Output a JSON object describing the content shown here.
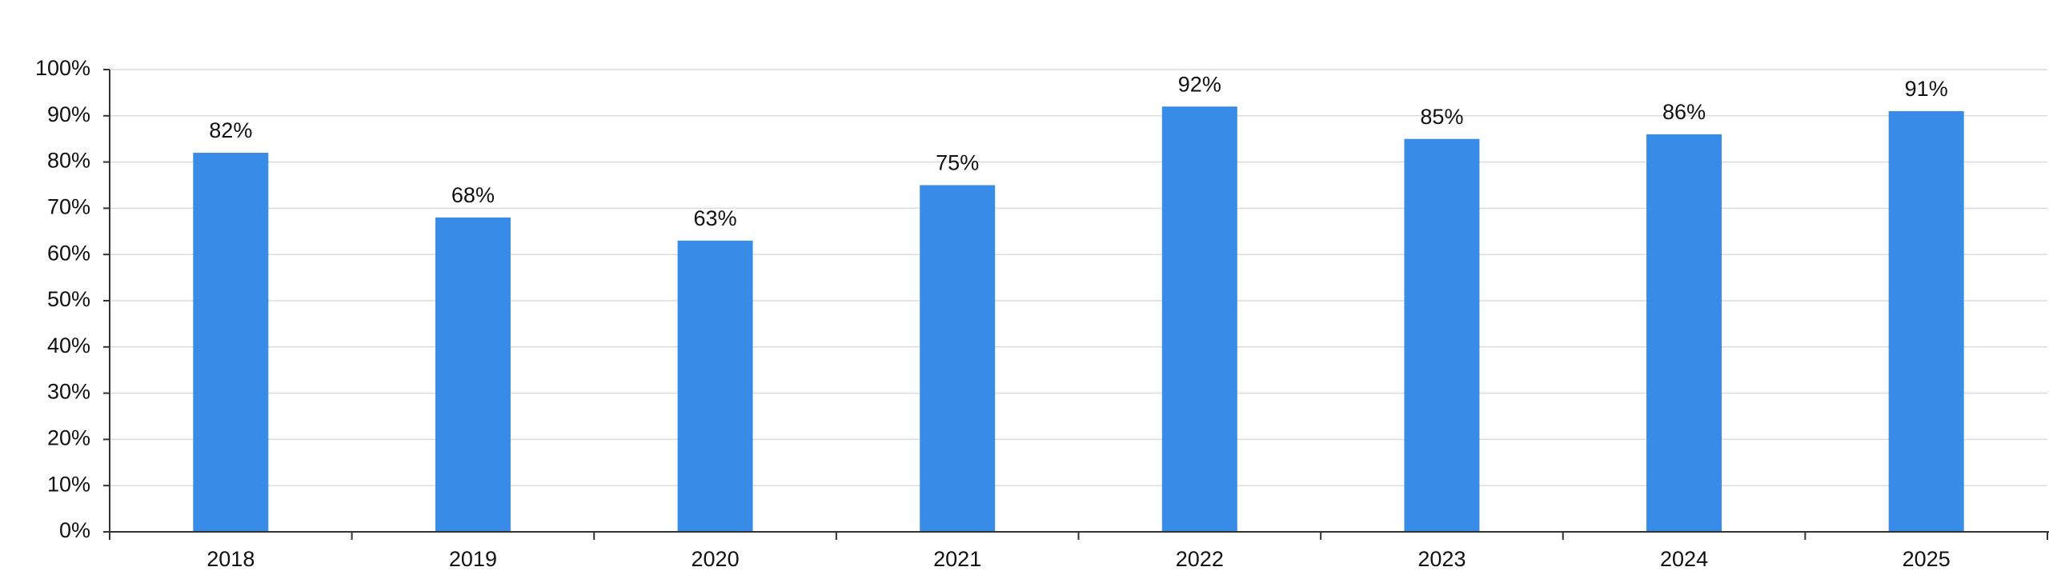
{
  "chart_data": {
    "type": "bar",
    "categories": [
      "2018",
      "2019",
      "2020",
      "2021",
      "2022",
      "2023",
      "2024",
      "2025"
    ],
    "values": [
      82,
      68,
      63,
      75,
      92,
      85,
      86,
      91
    ],
    "value_labels": [
      "82%",
      "68%",
      "63%",
      "75%",
      "92%",
      "85%",
      "86%",
      "91%"
    ],
    "color": "#388be6",
    "ylim": [
      0,
      100
    ],
    "yticks": [
      {
        "value": 0,
        "label": "0%"
      },
      {
        "value": 10,
        "label": "10%"
      },
      {
        "value": 20,
        "label": "20%"
      },
      {
        "value": 30,
        "label": "30%"
      },
      {
        "value": 40,
        "label": "40%"
      },
      {
        "value": 50,
        "label": "50%"
      },
      {
        "value": 60,
        "label": "60%"
      },
      {
        "value": 70,
        "label": "70%"
      },
      {
        "value": 80,
        "label": "80%"
      },
      {
        "value": 90,
        "label": "90%"
      },
      {
        "value": 100,
        "label": "100%"
      }
    ],
    "grid": true
  }
}
